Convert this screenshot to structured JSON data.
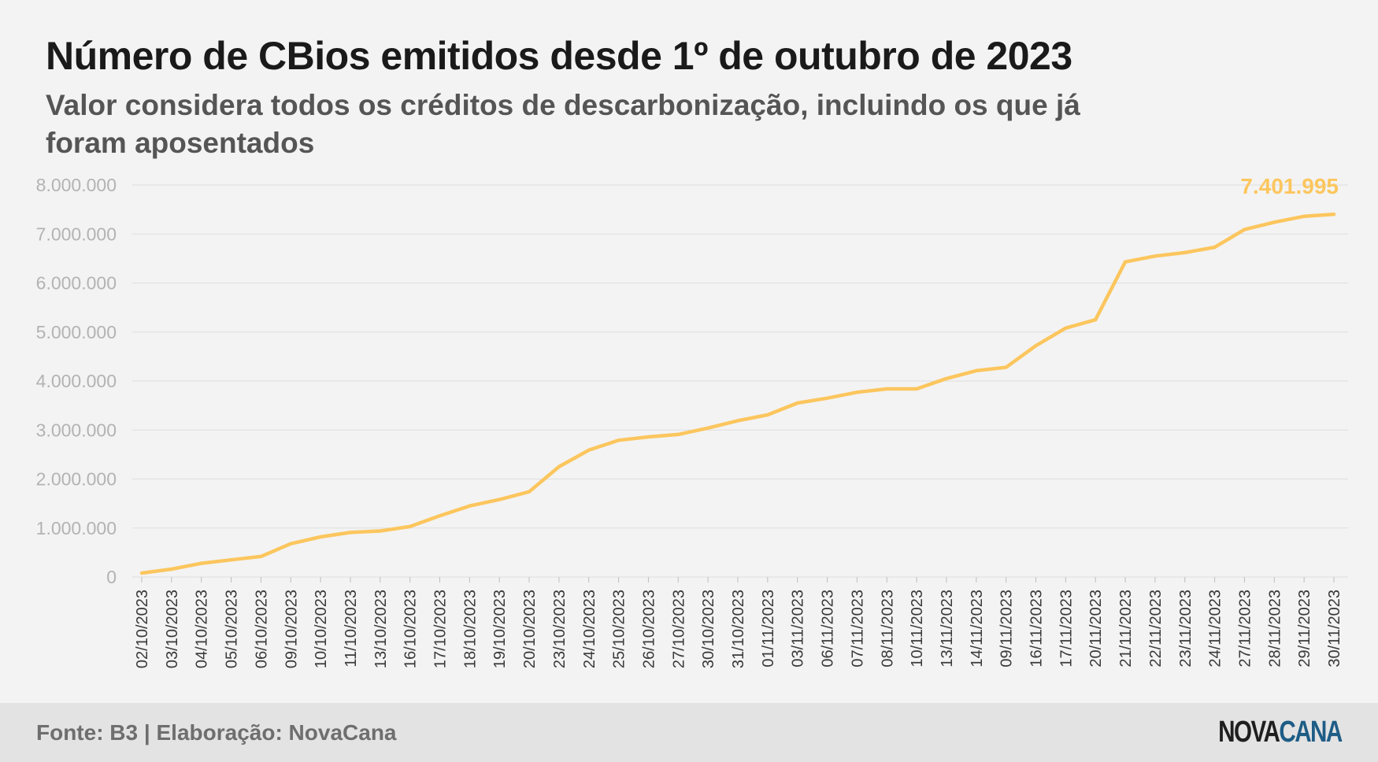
{
  "header": {
    "title": "Número de CBios emitidos desde 1º de outubro de 2023",
    "subtitle": "Valor considera todos os créditos de descarbonização, incluindo os que já foram aposentados"
  },
  "footer": {
    "source": "Fonte: B3 | Elaboração: NovaCana",
    "logo_part1": "NOVA",
    "logo_part2": "CANA"
  },
  "colors": {
    "line": "#fcc65e",
    "grid": "#dedede",
    "tick_text": "#b3b3b3",
    "xtick_text": "#3a3a3a",
    "logo_dark": "#1f1f1f",
    "logo_blue": "#1e5d86"
  },
  "chart_data": {
    "type": "line",
    "title": "Número de CBios emitidos desde 1º de outubro de 2023",
    "xlabel": "",
    "ylabel": "",
    "ylim": [
      0,
      8000000
    ],
    "yticks": [
      0,
      1000000,
      2000000,
      3000000,
      4000000,
      5000000,
      6000000,
      7000000,
      8000000
    ],
    "ytick_labels": [
      "0",
      "1.000.000",
      "2.000.000",
      "3.000.000",
      "4.000.000",
      "5.000.000",
      "6.000.000",
      "7.000.000",
      "8.000.000"
    ],
    "grid": true,
    "legend": "none",
    "categories": [
      "02/10/2023",
      "03/10/2023",
      "04/10/2023",
      "05/10/2023",
      "06/10/2023",
      "09/10/2023",
      "10/10/2023",
      "11/10/2023",
      "13/10/2023",
      "16/10/2023",
      "17/10/2023",
      "18/10/2023",
      "19/10/2023",
      "20/10/2023",
      "23/10/2023",
      "24/10/2023",
      "25/10/2023",
      "26/10/2023",
      "27/10/2023",
      "30/10/2023",
      "31/10/2023",
      "01/11/2023",
      "03/11/2023",
      "06/11/2023",
      "07/11/2023",
      "08/11/2023",
      "10/11/2023",
      "13/11/2023",
      "14/11/2023",
      "09/11/2023",
      "16/11/2023",
      "17/11/2023",
      "20/11/2023",
      "21/11/2023",
      "22/11/2023",
      "23/11/2023",
      "24/11/2023",
      "27/11/2023",
      "28/11/2023",
      "29/11/2023",
      "30/11/2023"
    ],
    "values": [
      80000,
      160000,
      280000,
      350000,
      420000,
      680000,
      820000,
      910000,
      940000,
      1030000,
      1250000,
      1450000,
      1580000,
      1740000,
      2250000,
      2590000,
      2790000,
      2860000,
      2910000,
      3040000,
      3190000,
      3310000,
      3550000,
      3650000,
      3770000,
      3840000,
      3840000,
      4050000,
      4210000,
      4280000,
      4720000,
      5080000,
      5250000,
      6430000,
      6550000,
      6620000,
      6730000,
      7090000,
      7240000,
      7360000,
      7401995
    ],
    "annotation": "7.401.995"
  }
}
